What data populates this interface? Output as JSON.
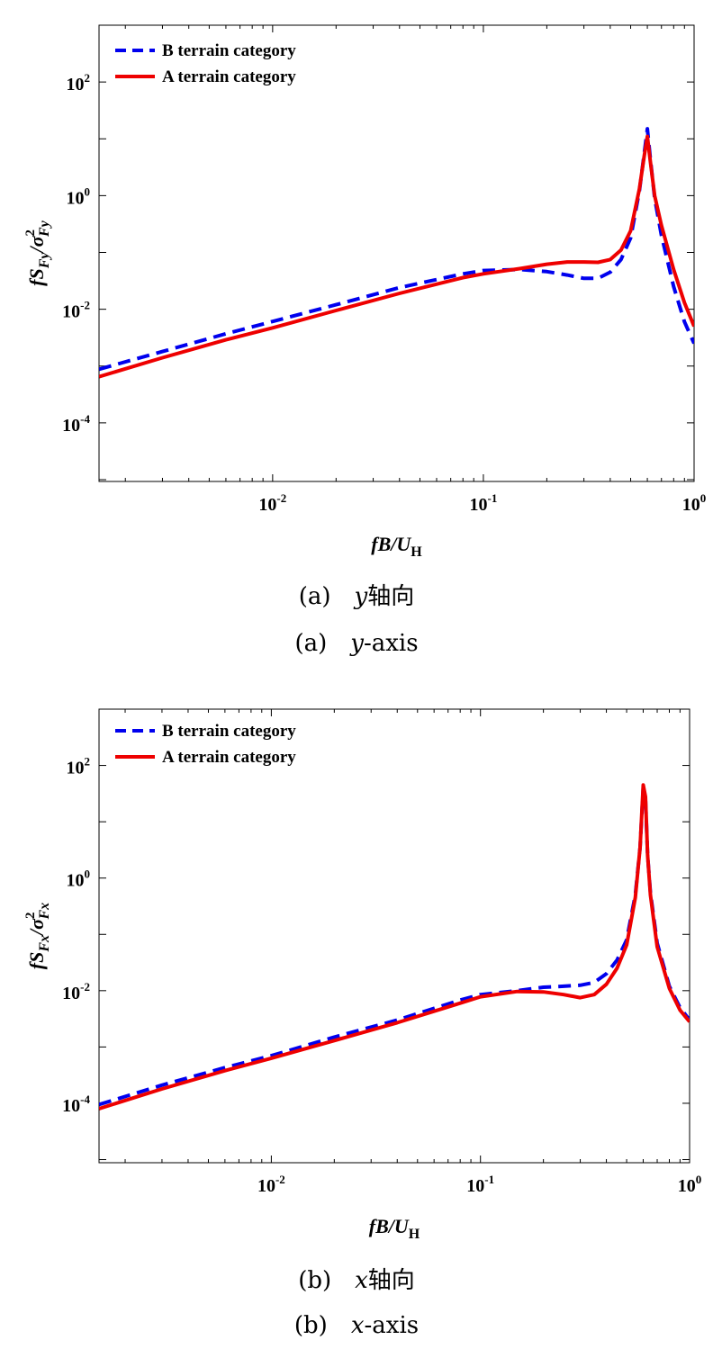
{
  "chart_data": [
    {
      "type": "line",
      "xscale": "log",
      "yscale": "log",
      "xlim": [
        0.0015,
        1.0
      ],
      "ylim": [
        9.3e-06,
        1000
      ],
      "x_ticks": [
        {
          "value": 0.01,
          "base": "10",
          "exp": "-2"
        },
        {
          "value": 0.1,
          "base": "10",
          "exp": "-1"
        },
        {
          "value": 1,
          "base": "10",
          "exp": "0"
        }
      ],
      "y_ticks": [
        {
          "value": 0.0001,
          "base": "10",
          "exp": "-4"
        },
        {
          "value": 0.01,
          "base": "10",
          "exp": "-2"
        },
        {
          "value": 1,
          "base": "10",
          "exp": "0"
        },
        {
          "value": 100,
          "base": "10",
          "exp": "2"
        }
      ],
      "xlabel": {
        "main": "fB/U",
        "sub": "H"
      },
      "ylabel": {
        "main": "fS",
        "sub1": "Fy",
        "div": "/σ",
        "sup": "2",
        "sub2": "Fy"
      },
      "legend_position": "top-left",
      "series": [
        {
          "name": "B terrain category",
          "color": "#0000ee",
          "style": "dashed",
          "x": [
            0.0015,
            0.003,
            0.006,
            0.01,
            0.02,
            0.04,
            0.08,
            0.1,
            0.15,
            0.2,
            0.25,
            0.3,
            0.35,
            0.4,
            0.45,
            0.5,
            0.55,
            0.58,
            0.6,
            0.62,
            0.65,
            0.7,
            0.8,
            0.9,
            1.0
          ],
          "y": [
            0.00088,
            0.0018,
            0.0037,
            0.0061,
            0.012,
            0.024,
            0.042,
            0.048,
            0.05,
            0.046,
            0.04,
            0.035,
            0.035,
            0.045,
            0.075,
            0.18,
            1.2,
            5.5,
            15,
            4.5,
            0.9,
            0.2,
            0.025,
            0.006,
            0.0025
          ]
        },
        {
          "name": "A terrain category",
          "color": "#ee0000",
          "style": "solid",
          "x": [
            0.0015,
            0.003,
            0.006,
            0.01,
            0.02,
            0.04,
            0.08,
            0.1,
            0.15,
            0.2,
            0.25,
            0.3,
            0.35,
            0.4,
            0.45,
            0.5,
            0.55,
            0.58,
            0.6,
            0.62,
            0.65,
            0.7,
            0.8,
            0.9,
            1.0
          ],
          "y": [
            0.00065,
            0.0014,
            0.0029,
            0.0047,
            0.0095,
            0.019,
            0.036,
            0.042,
            0.052,
            0.062,
            0.068,
            0.068,
            0.067,
            0.075,
            0.11,
            0.24,
            1.3,
            5.0,
            11,
            4.0,
            1.0,
            0.3,
            0.05,
            0.013,
            0.005
          ]
        }
      ]
    },
    {
      "type": "line",
      "xscale": "log",
      "yscale": "log",
      "xlim": [
        0.0015,
        1.0
      ],
      "ylim": [
        8.8e-06,
        1000
      ],
      "x_ticks": [
        {
          "value": 0.01,
          "base": "10",
          "exp": "-2"
        },
        {
          "value": 0.1,
          "base": "10",
          "exp": "-1"
        },
        {
          "value": 1,
          "base": "10",
          "exp": "0"
        }
      ],
      "y_ticks": [
        {
          "value": 0.0001,
          "base": "10",
          "exp": "-4"
        },
        {
          "value": 0.01,
          "base": "10",
          "exp": "-2"
        },
        {
          "value": 1,
          "base": "10",
          "exp": "0"
        },
        {
          "value": 100,
          "base": "10",
          "exp": "2"
        }
      ],
      "xlabel": {
        "main": "fB/U",
        "sub": "H"
      },
      "ylabel": {
        "main": "fS",
        "sub1": "Fx",
        "div": "/σ",
        "sup": "2",
        "sub2": "Fx"
      },
      "legend_position": "top-left",
      "series": [
        {
          "name": "B terrain category",
          "color": "#0000ee",
          "style": "dashed",
          "x": [
            0.0015,
            0.003,
            0.006,
            0.01,
            0.02,
            0.04,
            0.08,
            0.1,
            0.15,
            0.2,
            0.25,
            0.3,
            0.35,
            0.4,
            0.45,
            0.5,
            0.55,
            0.58,
            0.6,
            0.615,
            0.63,
            0.65,
            0.7,
            0.8,
            0.9,
            1.0
          ],
          "y": [
            9.5e-05,
            0.00021,
            0.00043,
            0.0007,
            0.0015,
            0.003,
            0.0068,
            0.0085,
            0.01,
            0.0115,
            0.012,
            0.0125,
            0.014,
            0.02,
            0.035,
            0.08,
            0.5,
            3.5,
            40,
            25,
            2.5,
            0.55,
            0.07,
            0.012,
            0.005,
            0.003
          ]
        },
        {
          "name": "A terrain category",
          "color": "#ee0000",
          "style": "solid",
          "x": [
            0.0015,
            0.003,
            0.006,
            0.01,
            0.02,
            0.04,
            0.08,
            0.1,
            0.15,
            0.2,
            0.25,
            0.3,
            0.35,
            0.4,
            0.45,
            0.5,
            0.55,
            0.58,
            0.6,
            0.615,
            0.63,
            0.65,
            0.7,
            0.8,
            0.9,
            1.0
          ],
          "y": [
            8e-05,
            0.00018,
            0.00038,
            0.00063,
            0.0013,
            0.0027,
            0.006,
            0.0078,
            0.0097,
            0.0095,
            0.0085,
            0.0075,
            0.0085,
            0.013,
            0.025,
            0.065,
            0.45,
            3.5,
            45,
            28,
            2.5,
            0.5,
            0.06,
            0.011,
            0.0045,
            0.0028
          ]
        }
      ]
    }
  ],
  "captions": {
    "a_cn": {
      "prefix": "(a) ",
      "var": "y",
      "suffix": "轴向"
    },
    "a_en": {
      "prefix": "(a) ",
      "var": "y",
      "suffix": "-axis"
    },
    "b_cn": {
      "prefix": "(b) ",
      "var": "x",
      "suffix": "轴向"
    },
    "b_en": {
      "prefix": "(b) ",
      "var": "x",
      "suffix": "-axis"
    }
  }
}
